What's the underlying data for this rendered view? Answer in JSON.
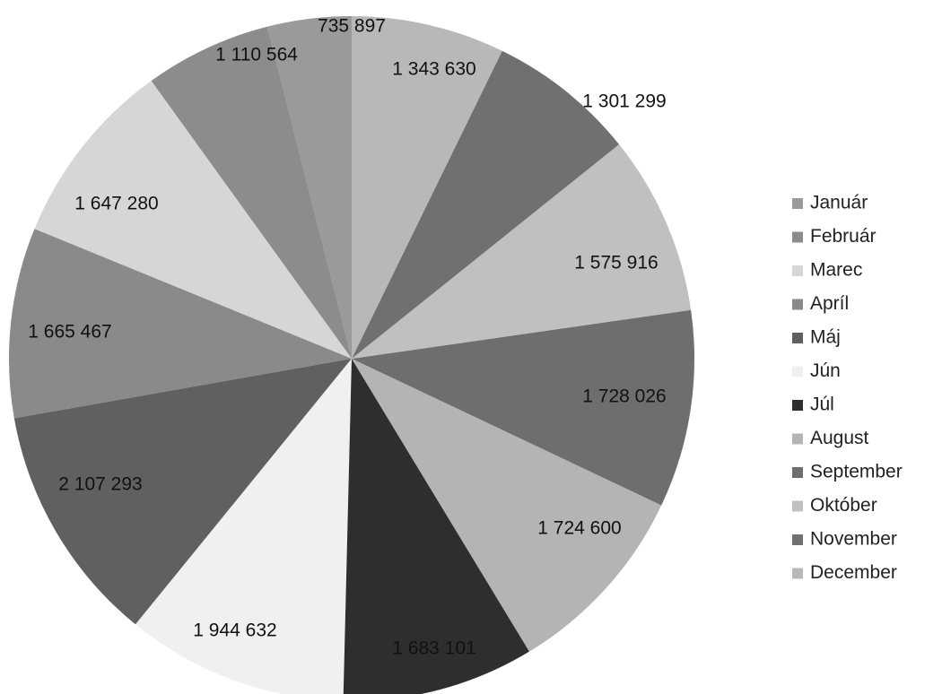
{
  "chart_data": {
    "type": "pie",
    "categories": [
      "Január",
      "Február",
      "Marec",
      "Apríl",
      "Máj",
      "Jún",
      "Júl",
      "August",
      "September",
      "Október",
      "November",
      "December"
    ],
    "values": [
      735897,
      1110564,
      1647280,
      1665467,
      2107293,
      1944632,
      1683101,
      1724600,
      1728026,
      1575916,
      1301299,
      1343630
    ],
    "value_labels": [
      "735 897",
      "1 110 564",
      "1 647 280",
      "1 665 467",
      "2 107 293",
      "1 944 632",
      "1 683 101",
      "1 724 600",
      "1 728 026",
      "1 575 916",
      "1 301 299",
      "1 343 630"
    ],
    "colors": [
      "#9a9a9a",
      "#8c8c8c",
      "#d6d6d6",
      "#8a8a8a",
      "#606060",
      "#f0f0f0",
      "#2e2e2e",
      "#b4b4b4",
      "#6e6e6e",
      "#c0c0c0",
      "#707070",
      "#b8b8b8"
    ],
    "direction": "counterclockwise",
    "start": "top",
    "legend_position": "right"
  }
}
